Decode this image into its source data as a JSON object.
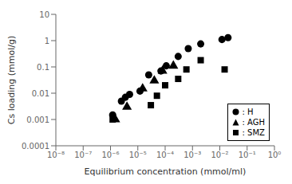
{
  "chart_data": {
    "type": "scatter",
    "xlabel": "Equilibrium concentration (mmol/ml)",
    "ylabel": "Cs loading (mmol/g)",
    "log": true,
    "grid": false,
    "legend": "lower right",
    "xlim": [
      1e-08,
      1
    ],
    "ylim": [
      0.0001,
      10
    ],
    "xticks": [
      {
        "value": 1e-08,
        "label": "10⁻⁸"
      },
      {
        "value": 1e-07,
        "label": "10⁻⁷"
      },
      {
        "value": 1e-06,
        "label": "10⁻⁶"
      },
      {
        "value": 1e-05,
        "label": "10⁻⁵"
      },
      {
        "value": 0.0001,
        "label": "10⁻⁴"
      },
      {
        "value": 0.001,
        "label": "10⁻³"
      },
      {
        "value": 0.01,
        "label": "10⁻²"
      },
      {
        "value": 0.1,
        "label": "10⁻¹"
      },
      {
        "value": 1,
        "label": "10⁰"
      }
    ],
    "yticks": [
      0.0001,
      0.001,
      0.01,
      0.1,
      1,
      10
    ],
    "series": [
      {
        "name": ": H",
        "color": "#000000",
        "marker": "circle",
        "x": [
          1.2e-06,
          2.5e-06,
          3.5e-06,
          5e-06,
          1.2e-05,
          2.5e-05,
          7e-05,
          0.00011,
          0.0003,
          0.0007,
          0.002,
          0.012,
          0.02
        ],
        "y": [
          0.0015,
          0.005,
          0.007,
          0.009,
          0.012,
          0.05,
          0.07,
          0.11,
          0.25,
          0.5,
          0.75,
          1.1,
          1.3
        ]
      },
      {
        "name": ": AGH",
        "color": "#000000",
        "marker": "triangle",
        "x": [
          1.5e-06,
          4e-06,
          1.5e-05,
          4e-05,
          8e-05,
          0.0002
        ],
        "y": [
          0.001,
          0.003,
          0.015,
          0.03,
          0.07,
          0.11
        ]
      },
      {
        "name": ": SMZ",
        "color": "#000000",
        "marker": "square",
        "x": [
          1.2e-06,
          3e-05,
          5e-05,
          0.0001,
          0.0003,
          0.0006,
          0.002,
          0.015
        ],
        "y": [
          0.001,
          0.0035,
          0.008,
          0.02,
          0.035,
          0.08,
          0.18,
          0.08
        ]
      }
    ]
  }
}
